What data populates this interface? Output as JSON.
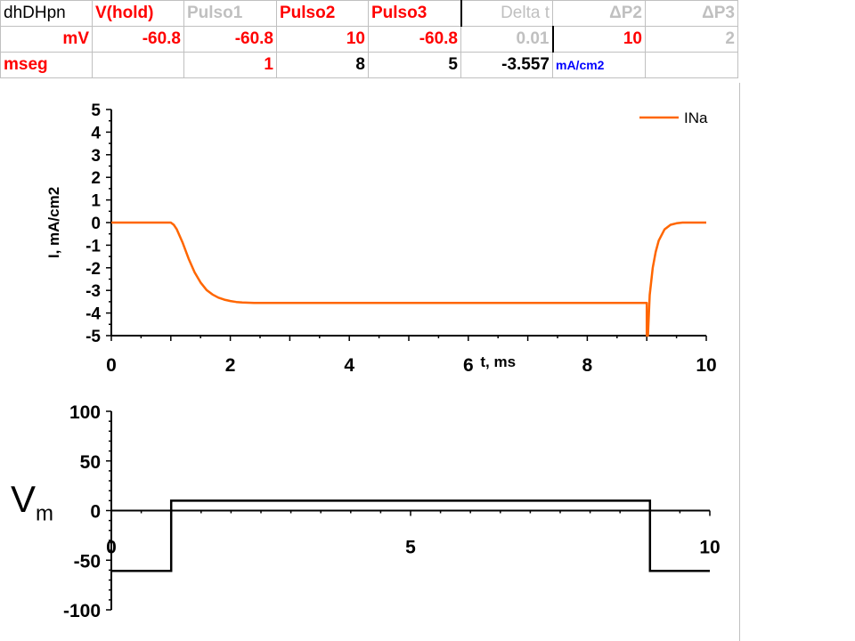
{
  "table": {
    "header": [
      "dhDHpn",
      "V(hold)",
      "Pulso1",
      "Pulso2",
      "Pulso3",
      "Delta t",
      "ΔP2",
      "ΔP3"
    ],
    "row_mv": [
      "mV",
      "-60.8",
      "-60.8",
      "10",
      "-60.8",
      "0.01",
      "10",
      "2"
    ],
    "row_mseg": [
      "mseg",
      "",
      "1",
      "8",
      "5",
      "-3.557",
      "mA/cm2",
      ""
    ]
  },
  "colors": {
    "current_trace": "#ff6600",
    "red_text": "#ff0000",
    "grey_text": "#c0c0c0",
    "unit_text": "#0000ff"
  },
  "vm_label": {
    "main": "V",
    "sub": "m"
  },
  "chart_data": [
    {
      "type": "line",
      "xlabel": "t, ms",
      "ylabel": "I, mA/cm2",
      "xlim": [
        0,
        10
      ],
      "ylim": [
        -5,
        5
      ],
      "xticks": [
        0,
        2,
        4,
        6,
        8,
        10
      ],
      "yticks": [
        5,
        4,
        3,
        2,
        1,
        0,
        -1,
        -2,
        -3,
        -4,
        -5
      ],
      "grid": false,
      "legend": "top-right",
      "series": [
        {
          "name": "INa",
          "x": [
            0,
            1.0,
            1.05,
            1.1,
            1.2,
            1.3,
            1.4,
            1.5,
            1.6,
            1.7,
            1.8,
            1.9,
            2.0,
            2.1,
            2.2,
            2.4,
            2.7,
            3.0,
            4.0,
            6.0,
            8.0,
            9.0,
            9.0,
            9.02,
            9.05,
            9.1,
            9.15,
            9.2,
            9.3,
            9.4,
            9.5,
            9.6,
            10.0
          ],
          "y": [
            0,
            0,
            -0.1,
            -0.3,
            -0.9,
            -1.6,
            -2.2,
            -2.65,
            -2.98,
            -3.18,
            -3.32,
            -3.41,
            -3.47,
            -3.51,
            -3.535,
            -3.55,
            -3.557,
            -3.557,
            -3.557,
            -3.557,
            -3.557,
            -3.557,
            -5.0,
            -5.0,
            -3.2,
            -2.0,
            -1.3,
            -0.8,
            -0.3,
            -0.1,
            -0.03,
            0,
            0
          ]
        }
      ]
    },
    {
      "type": "line",
      "xlabel": "",
      "ylabel": "",
      "xlim": [
        0,
        10
      ],
      "ylim": [
        -100,
        100
      ],
      "xticks": [
        0,
        5,
        10
      ],
      "yticks": [
        100,
        50,
        0,
        -50,
        -100
      ],
      "grid": false,
      "series": [
        {
          "x": [
            0,
            1,
            1,
            9,
            9,
            10
          ],
          "y": [
            -60.8,
            -60.8,
            10,
            10,
            -60.8,
            -60.8
          ]
        }
      ]
    }
  ]
}
